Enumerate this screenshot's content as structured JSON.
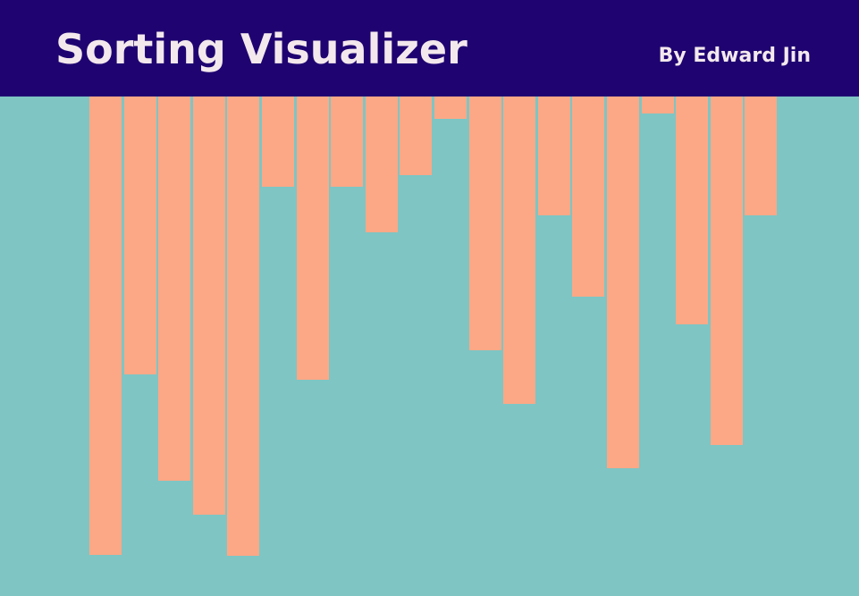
{
  "header": {
    "title": "Sorting Visualizer",
    "author": "By Edward Jin"
  },
  "colors": {
    "header_background": "#1f0371",
    "page_background": "#7ec5c4",
    "bar": "#fca886",
    "header_text": "#f3e8ec"
  },
  "array": {
    "values": [
      513,
      311,
      430,
      468,
      514,
      101,
      317,
      101,
      152,
      88,
      25,
      284,
      344,
      133,
      224,
      416,
      19,
      255,
      390,
      133
    ]
  }
}
